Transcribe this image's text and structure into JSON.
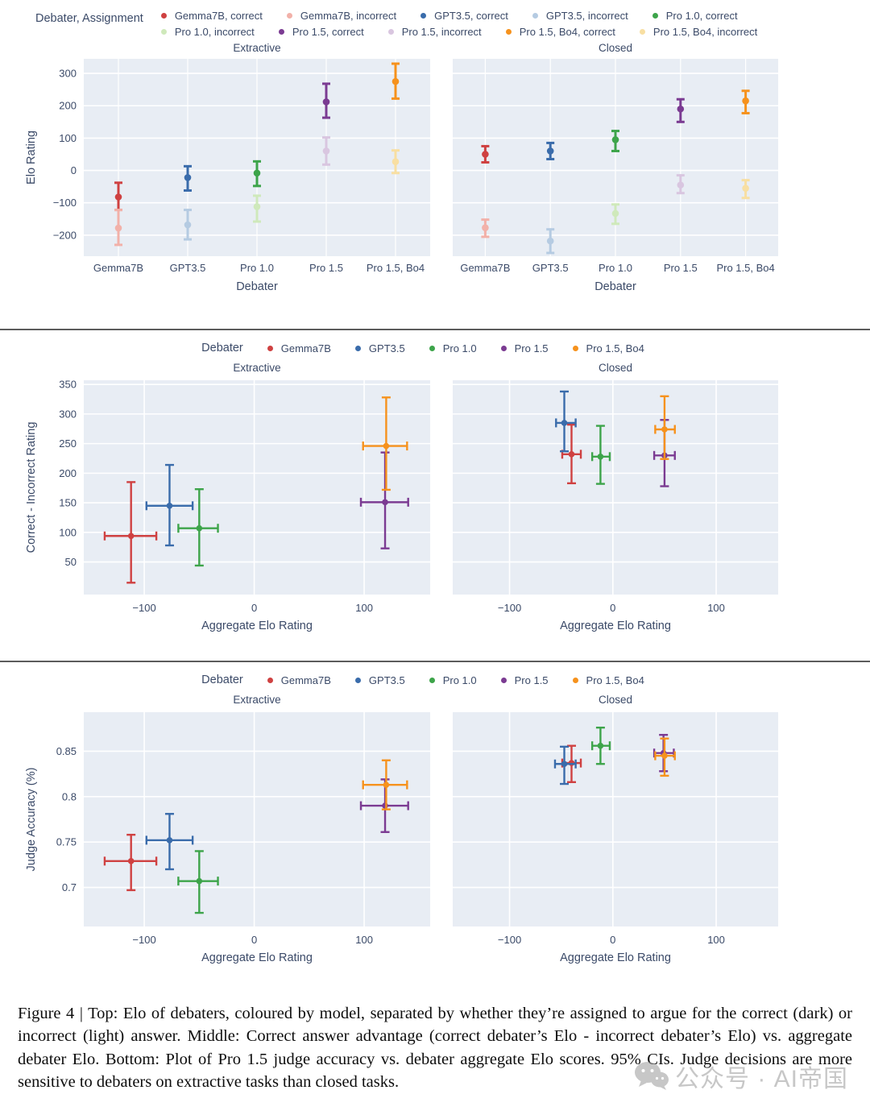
{
  "colors": {
    "text": "#3b4a68",
    "plot_bg": "#e8edf4",
    "grid": "#ffffff",
    "separator": "#5c5c5c",
    "gemma_correct": "#cf4141",
    "gemma_incorrect": "#f2b1a9",
    "gpt_correct": "#3a6cab",
    "gpt_incorrect": "#b5cbe2",
    "pro10_correct": "#3da44a",
    "pro10_incorrect": "#cfe9bb",
    "pro15_correct": "#7b3b92",
    "pro15_incorrect": "#d9c6e0",
    "bo4_correct": "#f6921d",
    "bo4_incorrect": "#f8dfa2"
  },
  "chart_data": [
    {
      "type": "point-range",
      "legend_title": "Debater, Assignment",
      "legend_rows": [
        [
          {
            "label": "Gemma7B, correct",
            "color": "gemma_correct"
          },
          {
            "label": "Gemma7B, incorrect",
            "color": "gemma_incorrect"
          },
          {
            "label": "GPT3.5, correct",
            "color": "gpt_correct"
          },
          {
            "label": "GPT3.5, incorrect",
            "color": "gpt_incorrect"
          },
          {
            "label": "Pro 1.0, correct",
            "color": "pro10_correct"
          }
        ],
        [
          {
            "label": "Pro 1.0, incorrect",
            "color": "pro10_incorrect"
          },
          {
            "label": "Pro 1.5, correct",
            "color": "pro15_correct"
          },
          {
            "label": "Pro 1.5, incorrect",
            "color": "pro15_incorrect"
          },
          {
            "label": "Pro 1.5, Bo4, correct",
            "color": "bo4_correct"
          },
          {
            "label": "Pro 1.5, Bo4, incorrect",
            "color": "bo4_incorrect"
          }
        ]
      ],
      "categories": [
        "Gemma7B",
        "GPT3.5",
        "Pro 1.0",
        "Pro 1.5",
        "Pro 1.5, Bo4"
      ],
      "xlabel": "Debater",
      "ylabel": "Elo Rating",
      "ylim": [
        -265,
        345
      ],
      "yticks": [
        300,
        200,
        100,
        0,
        -100,
        -200
      ],
      "panels": [
        {
          "title": "Extractive",
          "series": [
            {
              "name": "correct",
              "colors": [
                "gemma_correct",
                "gpt_correct",
                "pro10_correct",
                "pro15_correct",
                "bo4_correct"
              ],
              "points": [
                {
                  "y": -82,
                  "lo": -122,
                  "hi": -38
                },
                {
                  "y": -22,
                  "lo": -62,
                  "hi": 13
                },
                {
                  "y": -8,
                  "lo": -48,
                  "hi": 28
                },
                {
                  "y": 212,
                  "lo": 163,
                  "hi": 268
                },
                {
                  "y": 275,
                  "lo": 222,
                  "hi": 330
                }
              ]
            },
            {
              "name": "incorrect",
              "colors": [
                "gemma_incorrect",
                "gpt_incorrect",
                "pro10_incorrect",
                "pro15_incorrect",
                "bo4_incorrect"
              ],
              "points": [
                {
                  "y": -178,
                  "lo": -230,
                  "hi": -122
                },
                {
                  "y": -168,
                  "lo": -213,
                  "hi": -122
                },
                {
                  "y": -112,
                  "lo": -158,
                  "hi": -78
                },
                {
                  "y": 60,
                  "lo": 18,
                  "hi": 102
                },
                {
                  "y": 27,
                  "lo": -8,
                  "hi": 62
                }
              ]
            }
          ]
        },
        {
          "title": "Closed",
          "series": [
            {
              "name": "correct",
              "colors": [
                "gemma_correct",
                "gpt_correct",
                "pro10_correct",
                "pro15_correct",
                "bo4_correct"
              ],
              "points": [
                {
                  "y": 50,
                  "lo": 25,
                  "hi": 75
                },
                {
                  "y": 60,
                  "lo": 35,
                  "hi": 85
                },
                {
                  "y": 95,
                  "lo": 60,
                  "hi": 122
                },
                {
                  "y": 190,
                  "lo": 150,
                  "hi": 220
                },
                {
                  "y": 215,
                  "lo": 177,
                  "hi": 246
                }
              ]
            },
            {
              "name": "incorrect",
              "colors": [
                "gemma_incorrect",
                "gpt_incorrect",
                "pro10_incorrect",
                "pro15_incorrect",
                "bo4_incorrect"
              ],
              "points": [
                {
                  "y": -177,
                  "lo": -205,
                  "hi": -152
                },
                {
                  "y": -218,
                  "lo": -255,
                  "hi": -182
                },
                {
                  "y": -133,
                  "lo": -165,
                  "hi": -105
                },
                {
                  "y": -45,
                  "lo": -70,
                  "hi": -15
                },
                {
                  "y": -55,
                  "lo": -85,
                  "hi": -30
                }
              ]
            }
          ]
        }
      ]
    },
    {
      "type": "scatter-error",
      "legend_title": "Debater",
      "legend_rows": [
        [
          {
            "label": "Gemma7B",
            "color": "gemma_correct"
          },
          {
            "label": "GPT3.5",
            "color": "gpt_correct"
          },
          {
            "label": "Pro 1.0",
            "color": "pro10_correct"
          },
          {
            "label": "Pro 1.5",
            "color": "pro15_correct"
          },
          {
            "label": "Pro 1.5, Bo4",
            "color": "bo4_correct"
          }
        ]
      ],
      "xlabel": "Aggregate Elo Rating",
      "ylabel": "Correct - Incorrect Rating",
      "xlim": [
        -155,
        160
      ],
      "xticks": [
        -100,
        0,
        100
      ],
      "ylim": [
        -5,
        357
      ],
      "yticks": [
        350,
        300,
        250,
        200,
        150,
        100,
        50
      ],
      "panels": [
        {
          "title": "Extractive",
          "points": [
            {
              "name": "Gemma7B",
              "color": "gemma_correct",
              "x": -112,
              "xlo": -136,
              "xhi": -89,
              "y": 94,
              "ylo": 15,
              "yhi": 185
            },
            {
              "name": "GPT3.5",
              "color": "gpt_correct",
              "x": -77,
              "xlo": -98,
              "xhi": -56,
              "y": 145,
              "ylo": 78,
              "yhi": 214
            },
            {
              "name": "Pro 1.0",
              "color": "pro10_correct",
              "x": -50,
              "xlo": -69,
              "xhi": -33,
              "y": 107,
              "ylo": 44,
              "yhi": 173
            },
            {
              "name": "Pro 1.5",
              "color": "pro15_correct",
              "x": 119,
              "xlo": 97,
              "xhi": 140,
              "y": 151,
              "ylo": 73,
              "yhi": 235
            },
            {
              "name": "Pro 1.5, Bo4",
              "color": "bo4_correct",
              "x": 120,
              "xlo": 99,
              "xhi": 139,
              "y": 246,
              "ylo": 172,
              "yhi": 328
            }
          ]
        },
        {
          "title": "Closed",
          "points": [
            {
              "name": "Gemma7B",
              "color": "gemma_correct",
              "x": -40,
              "xlo": -49,
              "xhi": -31,
              "y": 232,
              "ylo": 183,
              "yhi": 282
            },
            {
              "name": "GPT3.5",
              "color": "gpt_correct",
              "x": -47,
              "xlo": -55,
              "xhi": -36,
              "y": 285,
              "ylo": 237,
              "yhi": 338
            },
            {
              "name": "Pro 1.0",
              "color": "pro10_correct",
              "x": -12,
              "xlo": -20,
              "xhi": -3,
              "y": 228,
              "ylo": 182,
              "yhi": 280
            },
            {
              "name": "Pro 1.5",
              "color": "pro15_correct",
              "x": 50,
              "xlo": 40,
              "xhi": 60,
              "y": 230,
              "ylo": 178,
              "yhi": 290
            },
            {
              "name": "Pro 1.5, Bo4",
              "color": "bo4_correct",
              "x": 50,
              "xlo": 41,
              "xhi": 60,
              "y": 274,
              "ylo": 224,
              "yhi": 330
            }
          ]
        }
      ]
    },
    {
      "type": "scatter-error",
      "legend_title": "Debater",
      "legend_rows": [
        [
          {
            "label": "Gemma7B",
            "color": "gemma_correct"
          },
          {
            "label": "GPT3.5",
            "color": "gpt_correct"
          },
          {
            "label": "Pro 1.0",
            "color": "pro10_correct"
          },
          {
            "label": "Pro 1.5",
            "color": "pro15_correct"
          },
          {
            "label": "Pro 1.5, Bo4",
            "color": "bo4_correct"
          }
        ]
      ],
      "xlabel": "Aggregate Elo Rating",
      "ylabel": "Judge Accuracy (%)",
      "xlim": [
        -155,
        160
      ],
      "xticks": [
        -100,
        0,
        100
      ],
      "ylim": [
        0.657,
        0.893
      ],
      "yticks": [
        0.85,
        0.8,
        0.75,
        0.7
      ],
      "panels": [
        {
          "title": "Extractive",
          "points": [
            {
              "name": "Gemma7B",
              "color": "gemma_correct",
              "x": -112,
              "xlo": -136,
              "xhi": -89,
              "y": 0.729,
              "ylo": 0.697,
              "yhi": 0.758
            },
            {
              "name": "GPT3.5",
              "color": "gpt_correct",
              "x": -77,
              "xlo": -98,
              "xhi": -56,
              "y": 0.752,
              "ylo": 0.72,
              "yhi": 0.781
            },
            {
              "name": "Pro 1.0",
              "color": "pro10_correct",
              "x": -50,
              "xlo": -69,
              "xhi": -33,
              "y": 0.707,
              "ylo": 0.672,
              "yhi": 0.74
            },
            {
              "name": "Pro 1.5",
              "color": "pro15_correct",
              "x": 119,
              "xlo": 97,
              "xhi": 140,
              "y": 0.79,
              "ylo": 0.761,
              "yhi": 0.819
            },
            {
              "name": "Pro 1.5, Bo4",
              "color": "bo4_correct",
              "x": 120,
              "xlo": 99,
              "xhi": 139,
              "y": 0.813,
              "ylo": 0.786,
              "yhi": 0.84
            }
          ]
        },
        {
          "title": "Closed",
          "points": [
            {
              "name": "Gemma7B",
              "color": "gemma_correct",
              "x": -40,
              "xlo": -49,
              "xhi": -31,
              "y": 0.837,
              "ylo": 0.816,
              "yhi": 0.856
            },
            {
              "name": "GPT3.5",
              "color": "gpt_correct",
              "x": -47,
              "xlo": -56,
              "xhi": -36,
              "y": 0.836,
              "ylo": 0.814,
              "yhi": 0.855
            },
            {
              "name": "Pro 1.0",
              "color": "pro10_correct",
              "x": -12,
              "xlo": -20,
              "xhi": -3,
              "y": 0.856,
              "ylo": 0.836,
              "yhi": 0.876
            },
            {
              "name": "Pro 1.5",
              "color": "pro15_correct",
              "x": 49,
              "xlo": 40,
              "xhi": 59,
              "y": 0.848,
              "ylo": 0.828,
              "yhi": 0.868
            },
            {
              "name": "Pro 1.5, Bo4",
              "color": "bo4_correct",
              "x": 50,
              "xlo": 41,
              "xhi": 60,
              "y": 0.845,
              "ylo": 0.823,
              "yhi": 0.864
            }
          ]
        }
      ]
    }
  ],
  "caption": {
    "text": "Figure 4 | Top: Elo of debaters, coloured by model, separated by whether they’re assigned to argue for the correct (dark) or incorrect (light) answer. Middle: Correct answer advantage (correct debater’s Elo - incorrect debater’s Elo) vs. aggregate debater Elo. Bottom: Plot of Pro 1.5 judge accuracy vs. debater aggregate Elo scores. 95% CIs. Judge decisions are more sensitive to debaters on extractive tasks than closed tasks."
  },
  "watermark": {
    "text": "公众号 · AI帝国"
  }
}
